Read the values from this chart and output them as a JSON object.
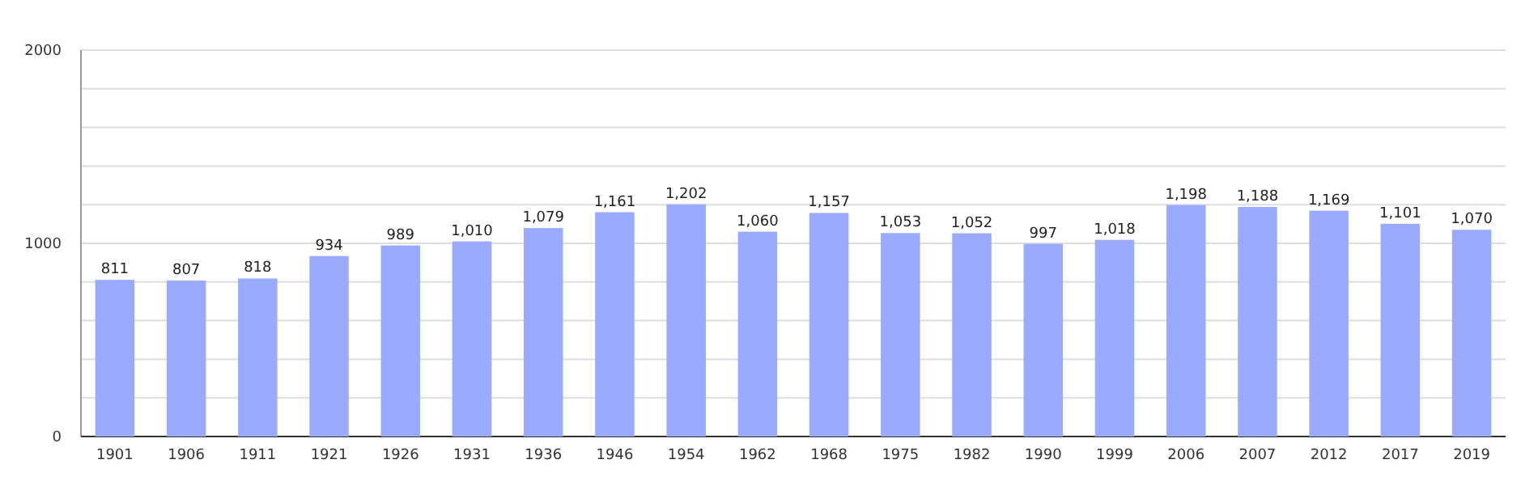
{
  "chart_data": {
    "type": "bar",
    "categories": [
      "1901",
      "1906",
      "1911",
      "1921",
      "1926",
      "1931",
      "1936",
      "1946",
      "1954",
      "1962",
      "1968",
      "1975",
      "1982",
      "1990",
      "1999",
      "2006",
      "2007",
      "2012",
      "2017",
      "2019"
    ],
    "values": [
      811,
      807,
      818,
      934,
      989,
      1010,
      1079,
      1161,
      1202,
      1060,
      1157,
      1053,
      1052,
      997,
      1018,
      1198,
      1188,
      1169,
      1101,
      1070
    ],
    "value_labels": [
      "811",
      "807",
      "818",
      "934",
      "989",
      "1,010",
      "1,079",
      "1,161",
      "1,202",
      "1,060",
      "1,157",
      "1,053",
      "1,052",
      "997",
      "1,018",
      "1,198",
      "1,188",
      "1,169",
      "1,101",
      "1,070"
    ],
    "color": "#99aaff",
    "ylim": [
      0,
      2000
    ],
    "yticks": [
      0,
      {
        "value": 200,
        "label": null
      },
      {
        "value": 400,
        "label": null
      },
      {
        "value": 600,
        "label": null
      },
      {
        "value": 800,
        "label": null
      },
      1000,
      {
        "value": 1200,
        "label": null
      },
      {
        "value": 1400,
        "label": null
      },
      {
        "value": 1600,
        "label": null
      },
      {
        "value": 1800,
        "label": null
      },
      2000
    ],
    "grid": true
  }
}
